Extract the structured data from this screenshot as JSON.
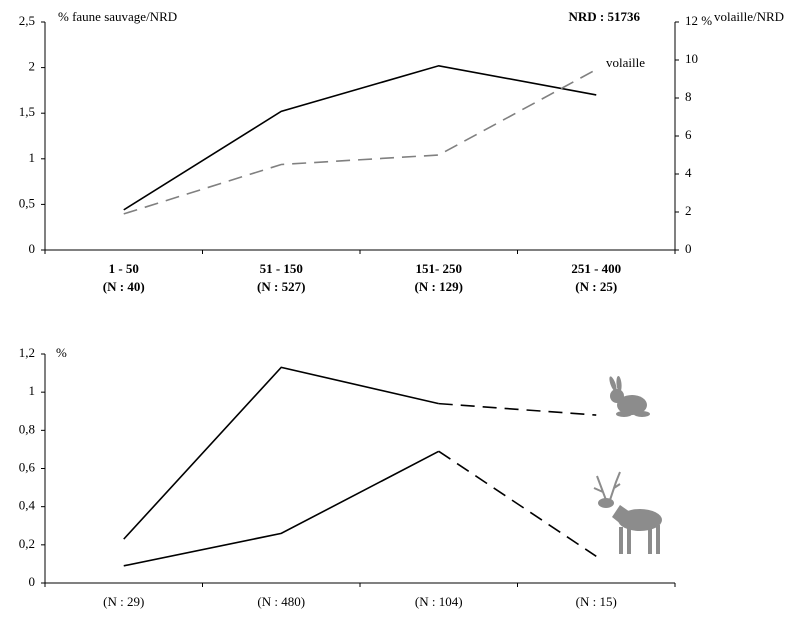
{
  "chart_data": [
    {
      "type": "line",
      "ylabel": "% faune sauvage/NRD",
      "y2label": "volaille/NRD",
      "annotations": [
        "NRD : 51736",
        "volaille"
      ],
      "categories": [
        "1 - 50",
        "51 - 150",
        "151- 250",
        "251 - 400"
      ],
      "sublabels": [
        "(N : 40)",
        "(N : 527)",
        "(N : 129)",
        "(N : 25)"
      ],
      "ylim": [
        0,
        2.5
      ],
      "yticks": [
        0,
        {
          "value": 0.5,
          "label": "0,5"
        },
        1,
        {
          "value": 1.5,
          "label": "1,5"
        },
        2,
        {
          "value": 2.5,
          "label": "2,5"
        }
      ],
      "y2lim": [
        0,
        12
      ],
      "y2ticks": [
        0,
        2,
        4,
        6,
        8,
        10,
        {
          "value": 12,
          "label": "12 %"
        }
      ],
      "series": [
        {
          "color": "#000000",
          "values": [
            0.44,
            1.52,
            2.02,
            1.7
          ]
        },
        {
          "color": "#808080",
          "axis": "y2",
          "dashed": true,
          "values": [
            1.9,
            4.5,
            5.0,
            9.5
          ]
        }
      ]
    },
    {
      "type": "line",
      "ylabel": "%",
      "categories": [
        "(N : 29)",
        "(N : 480)",
        "(N : 104)",
        "(N : 15)"
      ],
      "ylim": [
        0,
        1.2
      ],
      "yticks": [
        0,
        {
          "value": 0.2,
          "label": "0,2"
        },
        {
          "value": 0.4,
          "label": "0,4"
        },
        {
          "value": 0.6,
          "label": "0,6"
        },
        {
          "value": 0.8,
          "label": "0,8"
        },
        1,
        {
          "value": 1.2,
          "label": "1,2"
        }
      ],
      "series": [
        {
          "color": "#000000",
          "dashed_last": true,
          "values": [
            0.23,
            1.13,
            0.94,
            0.88
          ]
        },
        {
          "color": "#000000",
          "dashed_last": true,
          "values": [
            0.09,
            0.26,
            0.69,
            0.14
          ]
        }
      ]
    }
  ]
}
